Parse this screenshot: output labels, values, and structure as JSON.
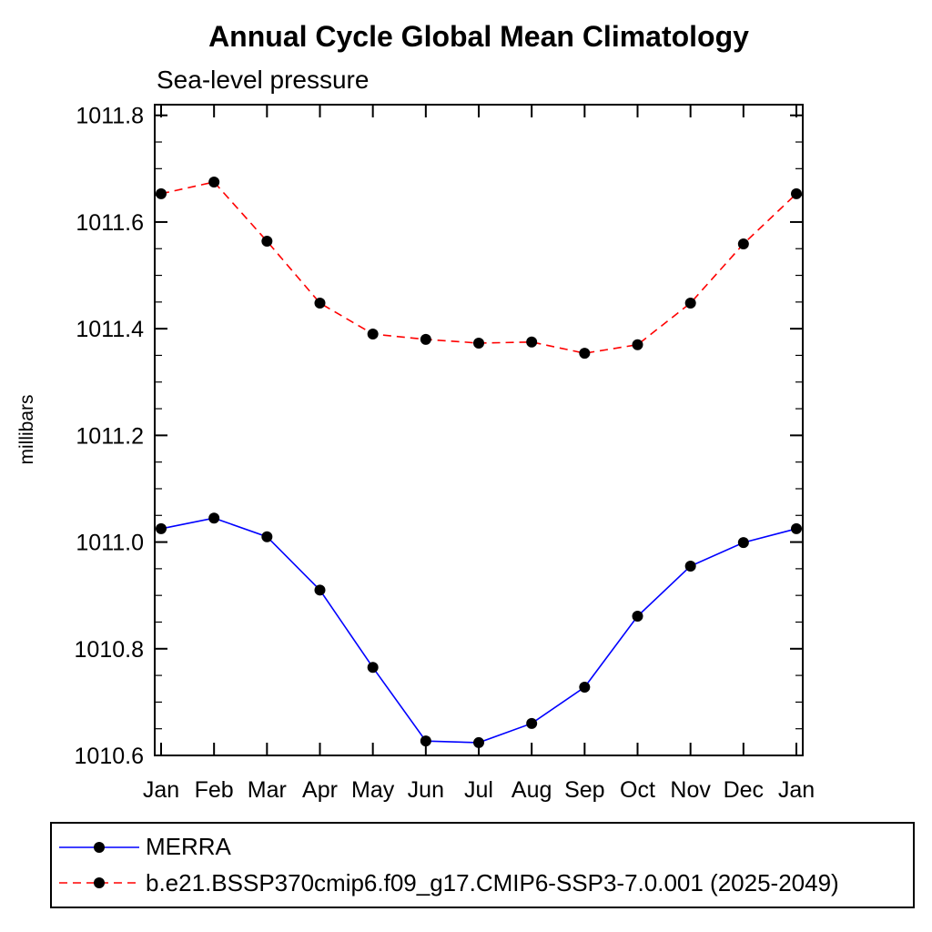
{
  "chart_data": {
    "type": "line",
    "title": "Annual Cycle Global Mean Climatology",
    "subtitle": "Sea-level pressure",
    "ylabel": "millibars",
    "xlabel": "",
    "x_categories": [
      "Jan",
      "Feb",
      "Mar",
      "Apr",
      "May",
      "Jun",
      "Jul",
      "Aug",
      "Sep",
      "Oct",
      "Nov",
      "Dec",
      "Jan"
    ],
    "ylim": [
      1010.6,
      1011.82
    ],
    "yticks": [
      1010.6,
      1010.8,
      1011.0,
      1011.2,
      1011.4,
      1011.6,
      1011.8
    ],
    "ytick_labels": [
      "1010.6",
      "1010.8",
      "1011.0",
      "1011.2",
      "1011.4",
      "1011.6",
      "1011.8"
    ],
    "grid": false,
    "legend_position": "bottom",
    "frame_color": "#000000",
    "marker": "filled-circle",
    "marker_color": "#000000",
    "series": [
      {
        "name": "MERRA",
        "color": "#0000ff",
        "style": "solid",
        "values": [
          1011.025,
          1011.045,
          1011.01,
          1010.91,
          1010.765,
          1010.627,
          1010.624,
          1010.66,
          1010.728,
          1010.861,
          1010.955,
          1010.999,
          1011.025
        ]
      },
      {
        "name": "b.e21.BSSP370cmip6.f09_g17.CMIP6-SSP3-7.0.001 (2025-2049)",
        "color": "#ff0000",
        "style": "dashed",
        "values": [
          1011.653,
          1011.675,
          1011.564,
          1011.448,
          1011.39,
          1011.38,
          1011.373,
          1011.375,
          1011.354,
          1011.37,
          1011.448,
          1011.559,
          1011.653
        ]
      }
    ]
  }
}
